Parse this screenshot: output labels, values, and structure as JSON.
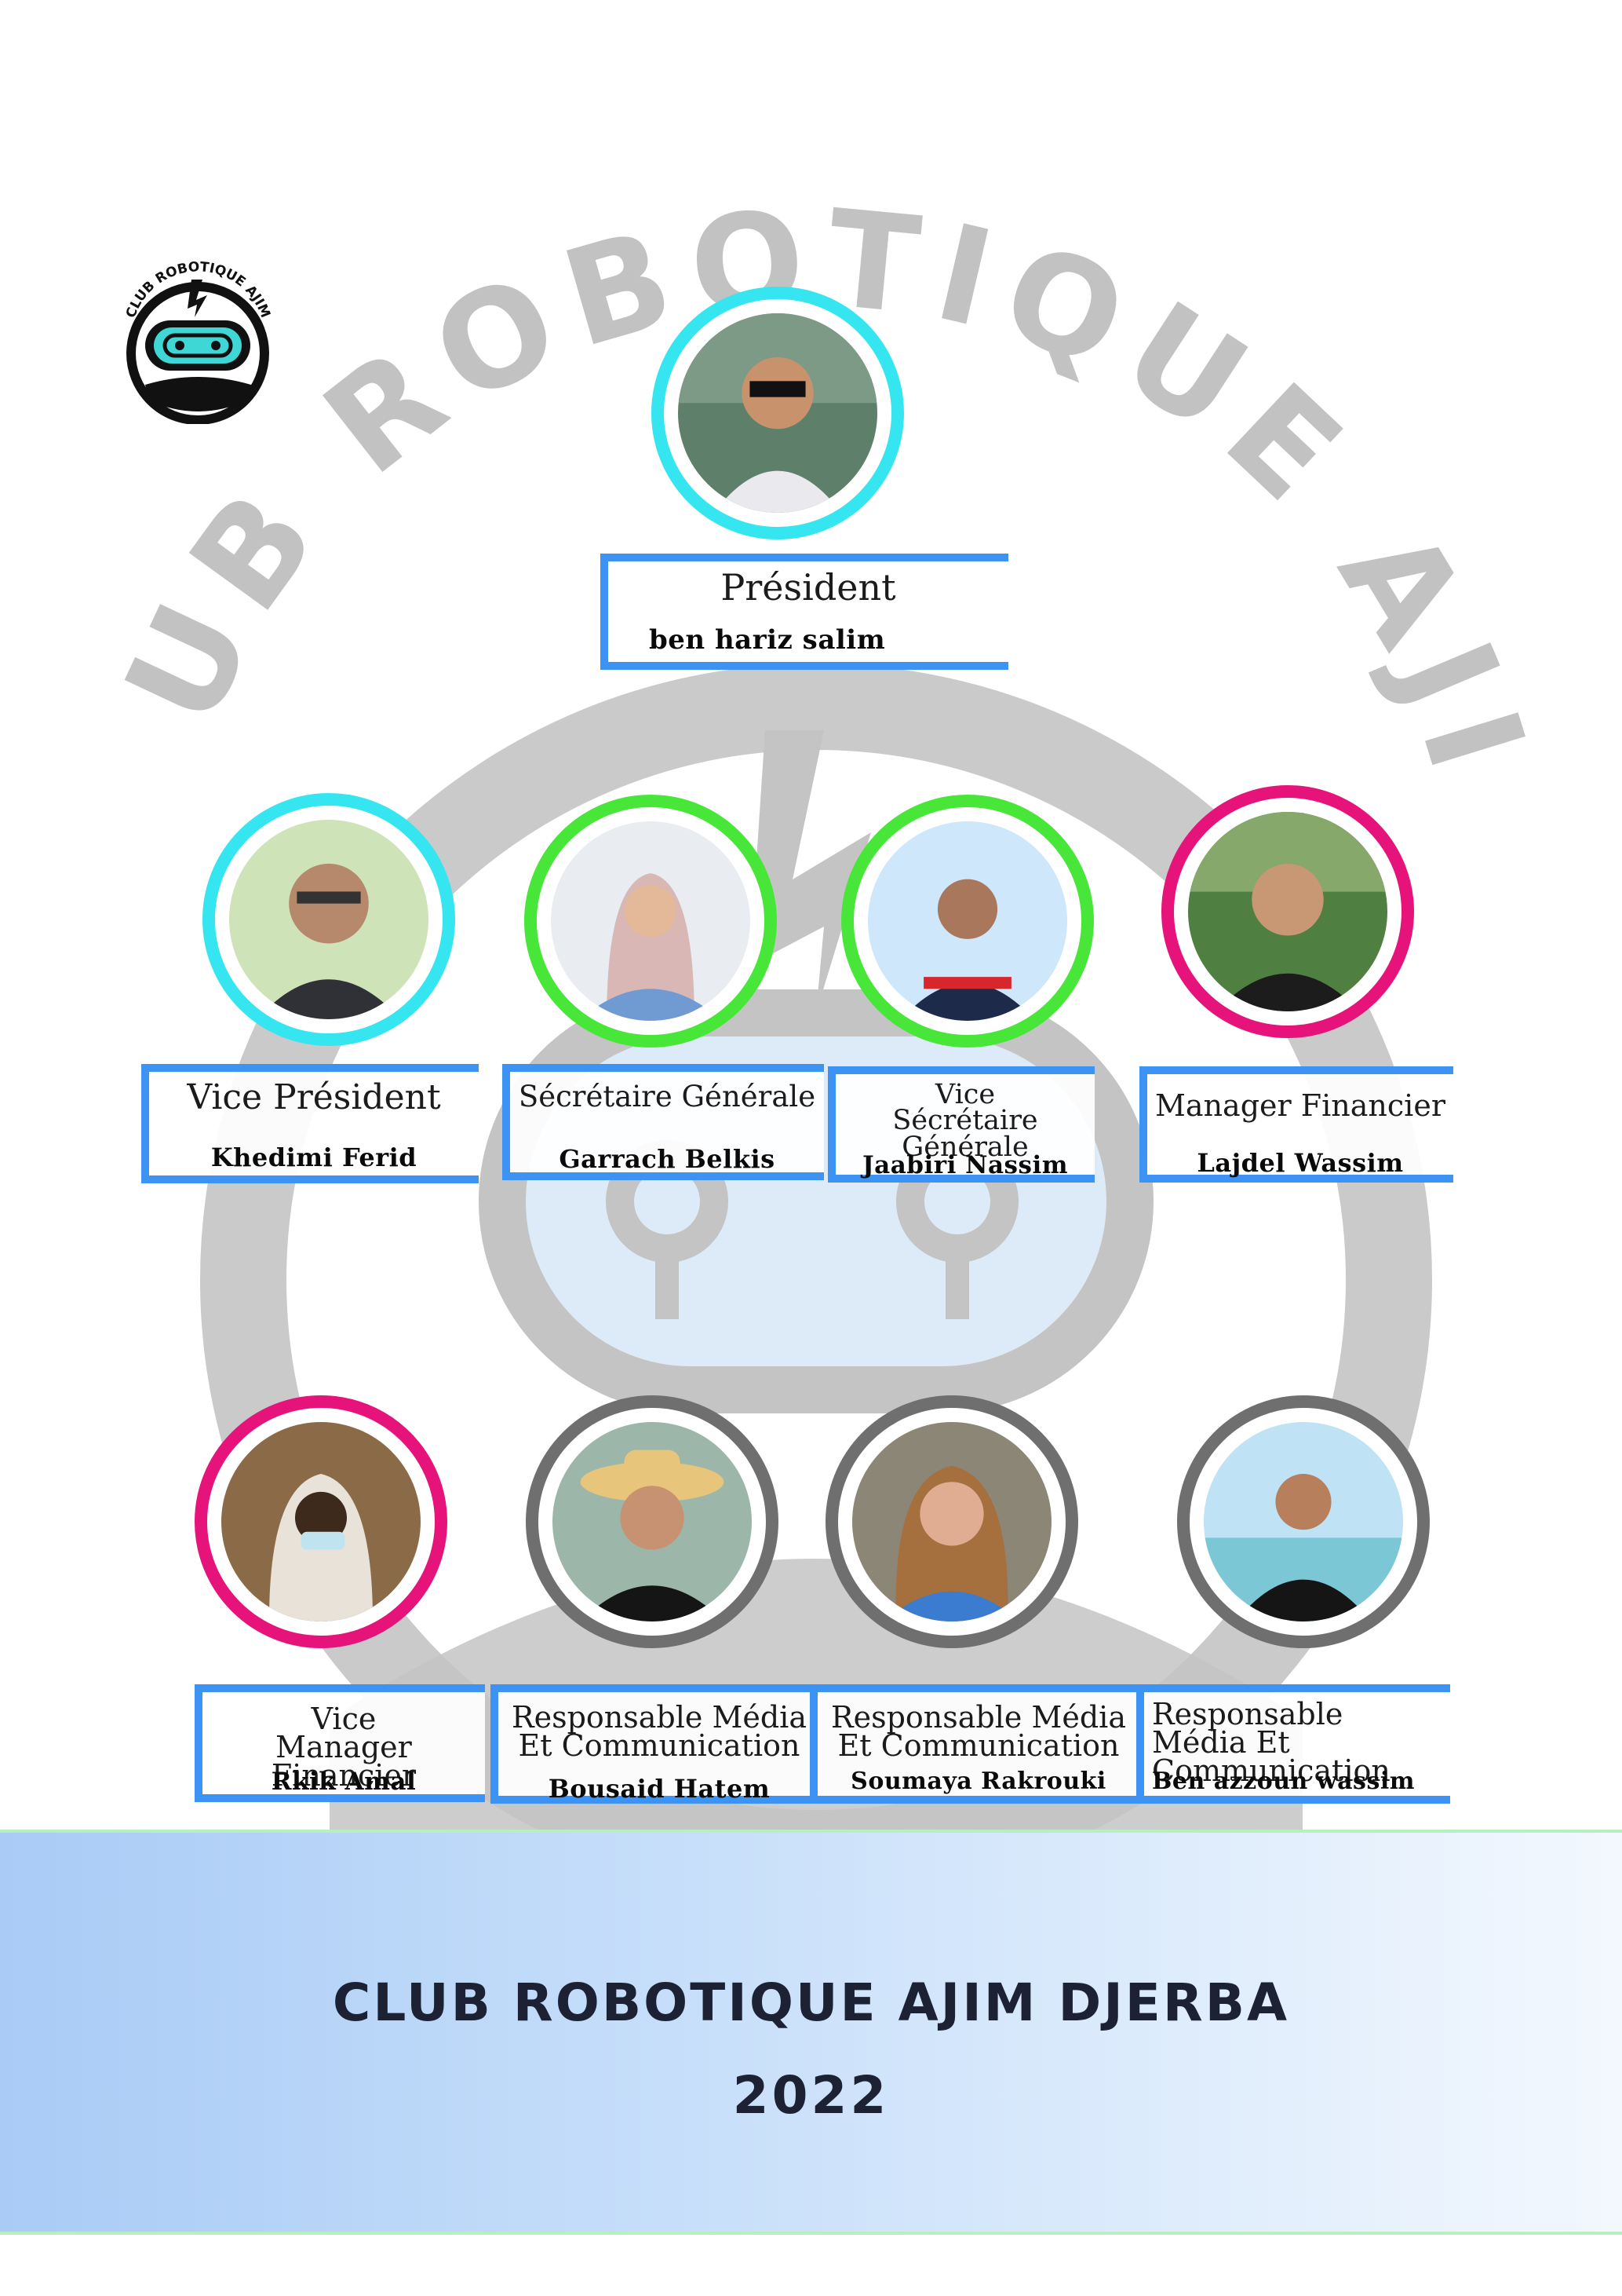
{
  "logo": {
    "text": "CLUB ROBOTIQUE AJIM"
  },
  "watermark": {
    "text": "CLUB ROBOTIQUE AJIM"
  },
  "members": [
    {
      "role": "Président",
      "name": "ben hariz salim",
      "ring": "#35e6f0"
    },
    {
      "role": "Vice Président",
      "name": "Khedimi Ferid",
      "ring": "#35e6f0"
    },
    {
      "role": "Sécrétaire Générale",
      "name": "Garrach Belkis",
      "ring": "#49e63a"
    },
    {
      "role": "Vice Sécrétaire Générale",
      "name": "Jaabiri Nassim",
      "ring": "#49e63a"
    },
    {
      "role": "Manager Financier",
      "name": "Lajdel Wassim",
      "ring": "#e5137a"
    },
    {
      "role": "Vice Manager Financier",
      "name": "Rkik Amal",
      "ring": "#e5137a"
    },
    {
      "role": "Responsable Média Et Communication",
      "name": "Bousaid Hatem",
      "ring": "#6f6f6f"
    },
    {
      "role": "Responsable Média Et Communication",
      "name": "Soumaya Rakrouki",
      "ring": "#6f6f6f"
    },
    {
      "role": "Responsable Média Et Communication",
      "name": "Ben azzoun wassim",
      "ring": "#6f6f6f"
    }
  ],
  "footer": {
    "title": "CLUB ROBOTIQUE AJIM DJERBA",
    "year": "2022"
  },
  "colors": {
    "accent_blue": "#3d93f3",
    "watermark_gray": "#bcbcbc",
    "footer_text": "#1c2233"
  }
}
